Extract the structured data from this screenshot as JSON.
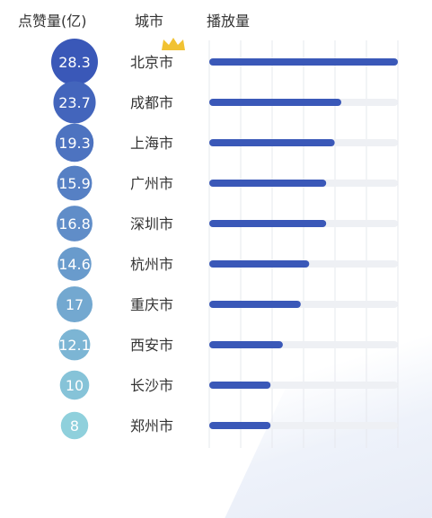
{
  "headers": {
    "likes": "点赞量(亿)",
    "city": "城市",
    "plays": "播放量"
  },
  "colors": {
    "bar": "#3a58b8",
    "track": "#eef0f4",
    "crown": "#f1c232"
  },
  "chart_data": {
    "type": "bar",
    "orientation": "horizontal",
    "categories": [
      "北京市",
      "成都市",
      "上海市",
      "广州市",
      "深圳市",
      "杭州市",
      "重庆市",
      "西安市",
      "长沙市",
      "郑州市"
    ],
    "likes": [
      28.3,
      23.7,
      19.3,
      15.9,
      16.8,
      14.6,
      17,
      12.1,
      10,
      8
    ],
    "plays": [
      100,
      70,
      66.5,
      62,
      62,
      53,
      48.5,
      39,
      32.5,
      32.5
    ],
    "xlim": [
      0,
      100
    ],
    "grid": true
  }
}
